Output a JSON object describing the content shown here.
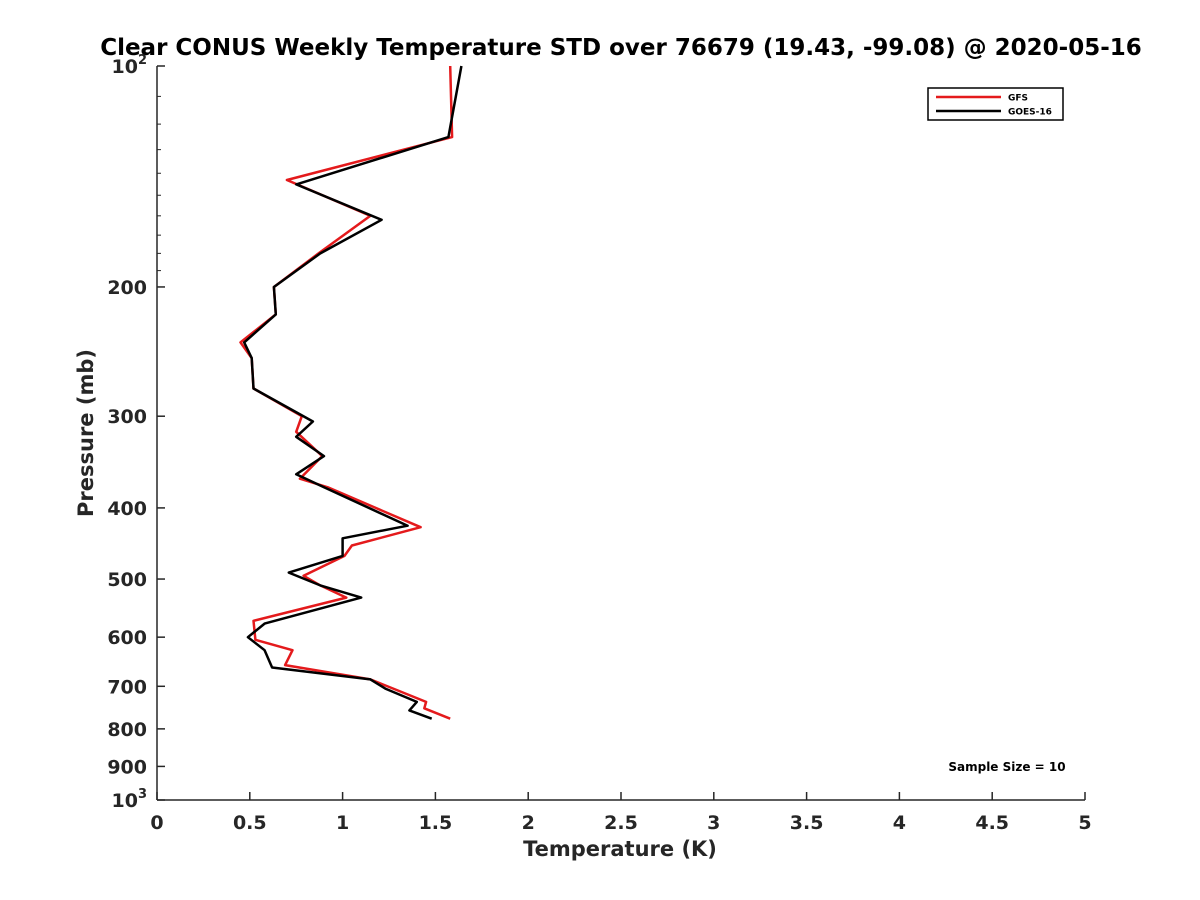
{
  "chart_data": {
    "type": "line",
    "title": "Clear CONUS Weekly Temperature STD over 76679 (19.43, -99.08) @ 2020-05-16",
    "xlabel": "Temperature (K)",
    "ylabel": "Pressure (mb)",
    "xlim": [
      0,
      5
    ],
    "ylim": [
      100,
      1000
    ],
    "y_scale": "log",
    "y_reversed": true,
    "x_ticks": [
      "0",
      "0.5",
      "1",
      "1.5",
      "2",
      "2.5",
      "3",
      "3.5",
      "4",
      "4.5",
      "5"
    ],
    "y_ticks": [
      {
        "value": 100,
        "base": "10",
        "exp": "2"
      },
      {
        "value": 200,
        "label": "200"
      },
      {
        "value": 300,
        "label": "300"
      },
      {
        "value": 400,
        "label": "400"
      },
      {
        "value": 500,
        "label": "500"
      },
      {
        "value": 600,
        "label": "600"
      },
      {
        "value": 700,
        "label": "700"
      },
      {
        "value": 800,
        "label": "800"
      },
      {
        "value": 900,
        "label": "900"
      },
      {
        "value": 1000,
        "base": "10",
        "exp": "3"
      }
    ],
    "grid": false,
    "legend_position": "top-right",
    "annotation": "Sample Size = 10",
    "series": [
      {
        "name": "GFS",
        "color": "#e41a1c",
        "x": [
          1.58,
          1.59,
          0.7,
          1.15,
          0.87,
          0.63,
          0.64,
          0.45,
          0.51,
          0.52,
          0.78,
          0.75,
          0.89,
          0.77,
          0.92,
          1.42,
          1.05,
          1.01,
          0.79,
          0.88,
          1.02,
          0.52,
          0.53,
          0.73,
          0.69,
          1.15,
          1.45,
          1.44,
          1.58
        ],
        "y": [
          100,
          125,
          143,
          160,
          180,
          200,
          218,
          238,
          250,
          275,
          300,
          315,
          340,
          365,
          375,
          425,
          450,
          465,
          495,
          510,
          530,
          570,
          605,
          625,
          655,
          685,
          735,
          750,
          775
        ]
      },
      {
        "name": "GOES-16",
        "color": "#000000",
        "x": [
          1.64,
          1.57,
          0.75,
          1.21,
          0.88,
          0.63,
          0.64,
          0.47,
          0.51,
          0.52,
          0.84,
          0.75,
          0.9,
          0.75,
          0.9,
          1.35,
          1.0,
          1.0,
          0.71,
          0.88,
          1.1,
          0.58,
          0.49,
          0.58,
          0.62,
          1.15,
          1.23,
          1.4,
          1.36,
          1.48
        ],
        "y": [
          100,
          125,
          145,
          162,
          180,
          200,
          218,
          238,
          250,
          275,
          305,
          320,
          340,
          360,
          375,
          423,
          440,
          465,
          490,
          510,
          530,
          575,
          600,
          625,
          660,
          685,
          705,
          735,
          755,
          775
        ]
      }
    ]
  }
}
